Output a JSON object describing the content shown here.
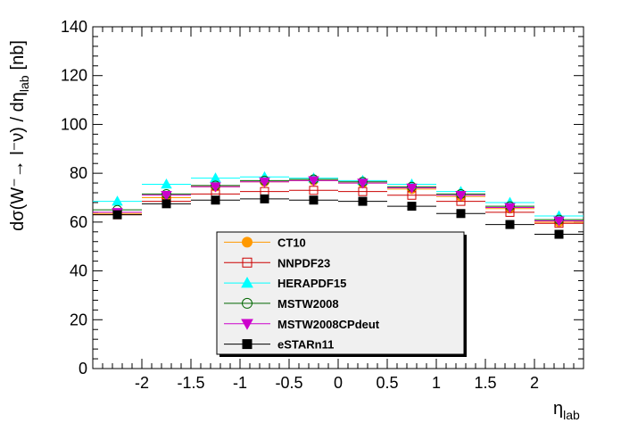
{
  "chart_data": {
    "type": "scatter",
    "title": "",
    "xlabel": "η",
    "xlabel_sub": "lab",
    "ylabel": "dσ(W⁻→ l⁻ν) / dη",
    "ylabel_sub": "lab",
    "ylabel_unit": "[nb]",
    "xlim": [
      -2.5,
      2.5
    ],
    "ylim": [
      0,
      140
    ],
    "x_ticks": [
      -2,
      -1.5,
      -1,
      -0.5,
      0,
      0.5,
      1,
      1.5,
      2
    ],
    "y_ticks": [
      0,
      20,
      40,
      60,
      80,
      100,
      120,
      140
    ],
    "bin_half_width": 0.25,
    "x": [
      -2.25,
      -1.75,
      -1.25,
      -0.75,
      -0.25,
      0.25,
      0.75,
      1.25,
      1.75,
      2.25
    ],
    "series": [
      {
        "name": "CT10",
        "color": "#ff9900",
        "marker": "circle-filled",
        "values": [
          63.5,
          70.0,
          74.5,
          76.5,
          77.0,
          76.0,
          73.5,
          70.5,
          65.5,
          60.0
        ]
      },
      {
        "name": "NNPDF23",
        "color": "#cc0000",
        "marker": "square-open",
        "values": [
          63.0,
          68.5,
          71.5,
          72.5,
          73.0,
          72.5,
          71.0,
          68.5,
          64.0,
          59.5
        ]
      },
      {
        "name": "HERAPDF15",
        "color": "#00ffff",
        "marker": "triangle-up-filled",
        "values": [
          68.5,
          75.5,
          78.0,
          78.5,
          78.0,
          77.0,
          75.5,
          72.5,
          68.0,
          62.5
        ]
      },
      {
        "name": "MSTW2008",
        "color": "#006600",
        "marker": "circle-open",
        "values": [
          65.0,
          71.5,
          75.0,
          77.0,
          77.5,
          76.5,
          74.5,
          71.5,
          66.5,
          61.0
        ]
      },
      {
        "name": "MSTW2008CPdeut",
        "color": "#cc00cc",
        "marker": "triangle-down-filled",
        "values": [
          64.0,
          71.0,
          74.5,
          76.5,
          77.0,
          76.0,
          74.0,
          71.0,
          66.0,
          60.5
        ]
      },
      {
        "name": "eSTARn11",
        "color": "#000000",
        "marker": "square-filled",
        "values": [
          63.0,
          67.5,
          69.0,
          69.5,
          69.0,
          68.5,
          66.5,
          63.5,
          59.0,
          55.0
        ]
      }
    ],
    "legend": {
      "placement": "bottom-center"
    },
    "grid": false
  }
}
